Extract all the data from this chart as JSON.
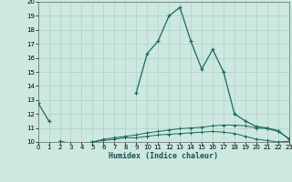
{
  "title": "",
  "xlabel": "Humidex (Indice chaleur)",
  "bg_color": "#cce8e0",
  "line_color": "#1a6b5a",
  "grid_color": "#b0d0c8",
  "xlim": [
    0,
    23
  ],
  "ylim": [
    10,
    20
  ],
  "xticks": [
    0,
    1,
    2,
    3,
    4,
    5,
    6,
    7,
    8,
    9,
    10,
    11,
    12,
    13,
    14,
    15,
    16,
    17,
    18,
    19,
    20,
    21,
    22,
    23
  ],
  "yticks": [
    10,
    11,
    12,
    13,
    14,
    15,
    16,
    17,
    18,
    19,
    20
  ],
  "line1_x": [
    0,
    1,
    2,
    3,
    4,
    5,
    6,
    7,
    8,
    9,
    10,
    11,
    12,
    13,
    14,
    15,
    16,
    17,
    18,
    19,
    20,
    21,
    22,
    23
  ],
  "line1_y": [
    12.8,
    11.5,
    null,
    null,
    null,
    null,
    null,
    null,
    null,
    13.5,
    16.3,
    17.2,
    19.0,
    19.6,
    17.2,
    15.2,
    16.6,
    15.0,
    12.0,
    11.5,
    11.1,
    11.0,
    10.8,
    10.2
  ],
  "line2_x": [
    2,
    3,
    4,
    5,
    6,
    7,
    8,
    9,
    10,
    11,
    12,
    13,
    14,
    15,
    16,
    17,
    18,
    19,
    20,
    21,
    22,
    23
  ],
  "line2_y": [
    10.05,
    9.9,
    9.9,
    10.0,
    10.2,
    10.3,
    10.4,
    10.5,
    10.65,
    10.75,
    10.85,
    10.95,
    11.0,
    11.05,
    11.15,
    11.2,
    11.2,
    11.15,
    11.0,
    10.95,
    10.75,
    10.25
  ],
  "line3_x": [
    2,
    3,
    4,
    5,
    6,
    7,
    8,
    9,
    10,
    11,
    12,
    13,
    14,
    15,
    16,
    17,
    18,
    19,
    20,
    21,
    22,
    23
  ],
  "line3_y": [
    10.05,
    9.9,
    9.85,
    10.0,
    10.1,
    10.2,
    10.3,
    10.3,
    10.4,
    10.5,
    10.55,
    10.6,
    10.65,
    10.7,
    10.75,
    10.7,
    10.6,
    10.4,
    10.2,
    10.1,
    10.0,
    10.05
  ]
}
